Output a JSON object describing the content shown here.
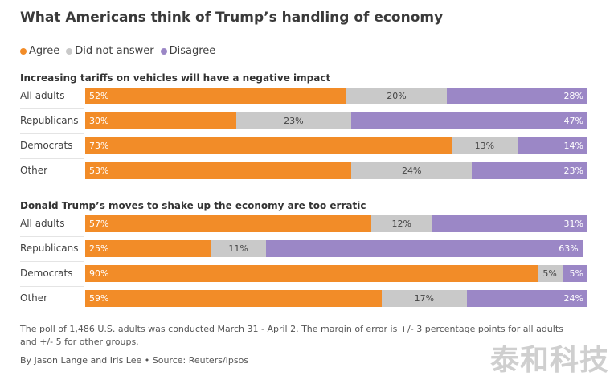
{
  "colors": {
    "agree": "#f28c28",
    "na": "#c9c9c9",
    "disagree": "#9b87c6"
  },
  "chart_data": {
    "type": "bar",
    "stacked": true,
    "title": "What Americans think of Trump’s handling of economy",
    "legend": [
      "Agree",
      "Did not answer",
      "Disagree"
    ],
    "panels": [
      {
        "title": "Increasing tariffs on vehicles will have a negative impact",
        "categories": [
          "All adults",
          "Republicans",
          "Democrats",
          "Other"
        ],
        "series": [
          {
            "name": "Agree",
            "values": [
              52,
              30,
              73,
              53
            ]
          },
          {
            "name": "Did not answer",
            "values": [
              20,
              23,
              13,
              24
            ]
          },
          {
            "name": "Disagree",
            "values": [
              28,
              47,
              14,
              23
            ]
          }
        ]
      },
      {
        "title": "Donald Trump’s moves to shake up the economy are too erratic",
        "categories": [
          "All adults",
          "Republicans",
          "Democrats",
          "Other"
        ],
        "series": [
          {
            "name": "Agree",
            "values": [
              57,
              25,
              90,
              59
            ]
          },
          {
            "name": "Did not answer",
            "values": [
              12,
              11,
              5,
              17
            ]
          },
          {
            "name": "Disagree",
            "values": [
              31,
              63,
              5,
              24
            ]
          }
        ]
      }
    ]
  },
  "footer": {
    "note": "The poll of 1,486 U.S. adults was conducted March 31 - April 2. The margin of error is +/- 3 percentage points for all adults and +/- 5 for other groups.",
    "byline": "By Jason Lange and Iris Lee • Source: Reuters/Ipsos"
  },
  "watermark": "泰和科技"
}
